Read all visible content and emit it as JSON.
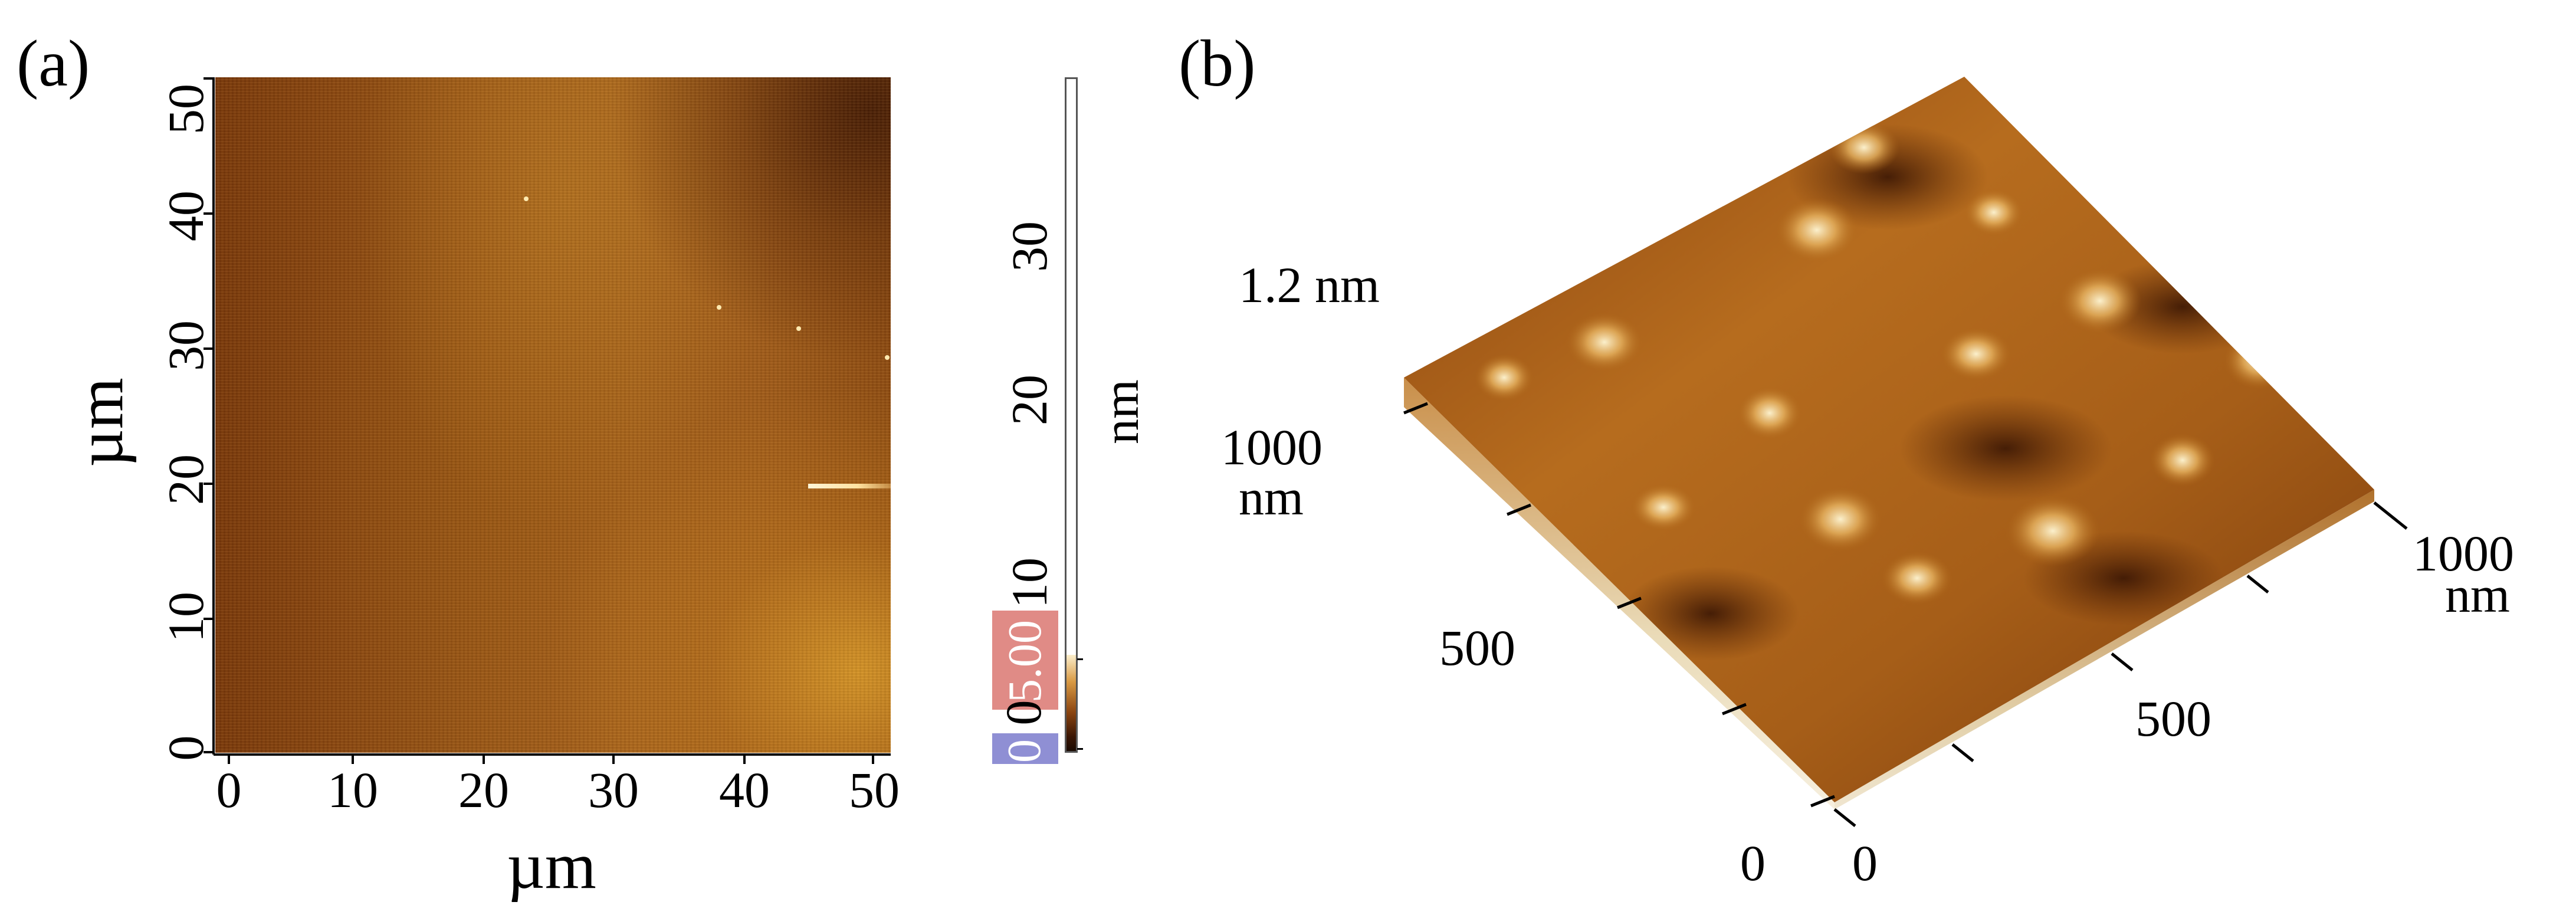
{
  "panel_a": {
    "label": "(a)",
    "y_ticks": [
      "50",
      "40",
      "30",
      "20",
      "10",
      "0"
    ],
    "x_ticks": [
      "0",
      "10",
      "20",
      "30",
      "40",
      "50"
    ],
    "x_axis_label": "µm",
    "y_axis_label": "µm",
    "colorbar": {
      "ticks": [
        "30",
        "20",
        "10"
      ],
      "unit": "nm",
      "max_box": "5.00",
      "min_box": "0",
      "min_value_label": "0"
    },
    "colors": {
      "dark": "#6a2c06",
      "mid": "#9b5716",
      "light": "#d79838"
    }
  },
  "panel_b": {
    "label": "(b)",
    "z_scale": "1.2 nm",
    "left_axis_max": "1000",
    "left_axis_unit": "nm",
    "left_axis_mid": "500",
    "left_axis_zero": "0",
    "right_axis_max": "1000",
    "right_axis_unit": "nm",
    "right_axis_mid": "500",
    "right_axis_zero": "0",
    "colors": {
      "peak": "#f8ecc4",
      "body": "#b06818",
      "valley": "#4a1c04"
    }
  }
}
